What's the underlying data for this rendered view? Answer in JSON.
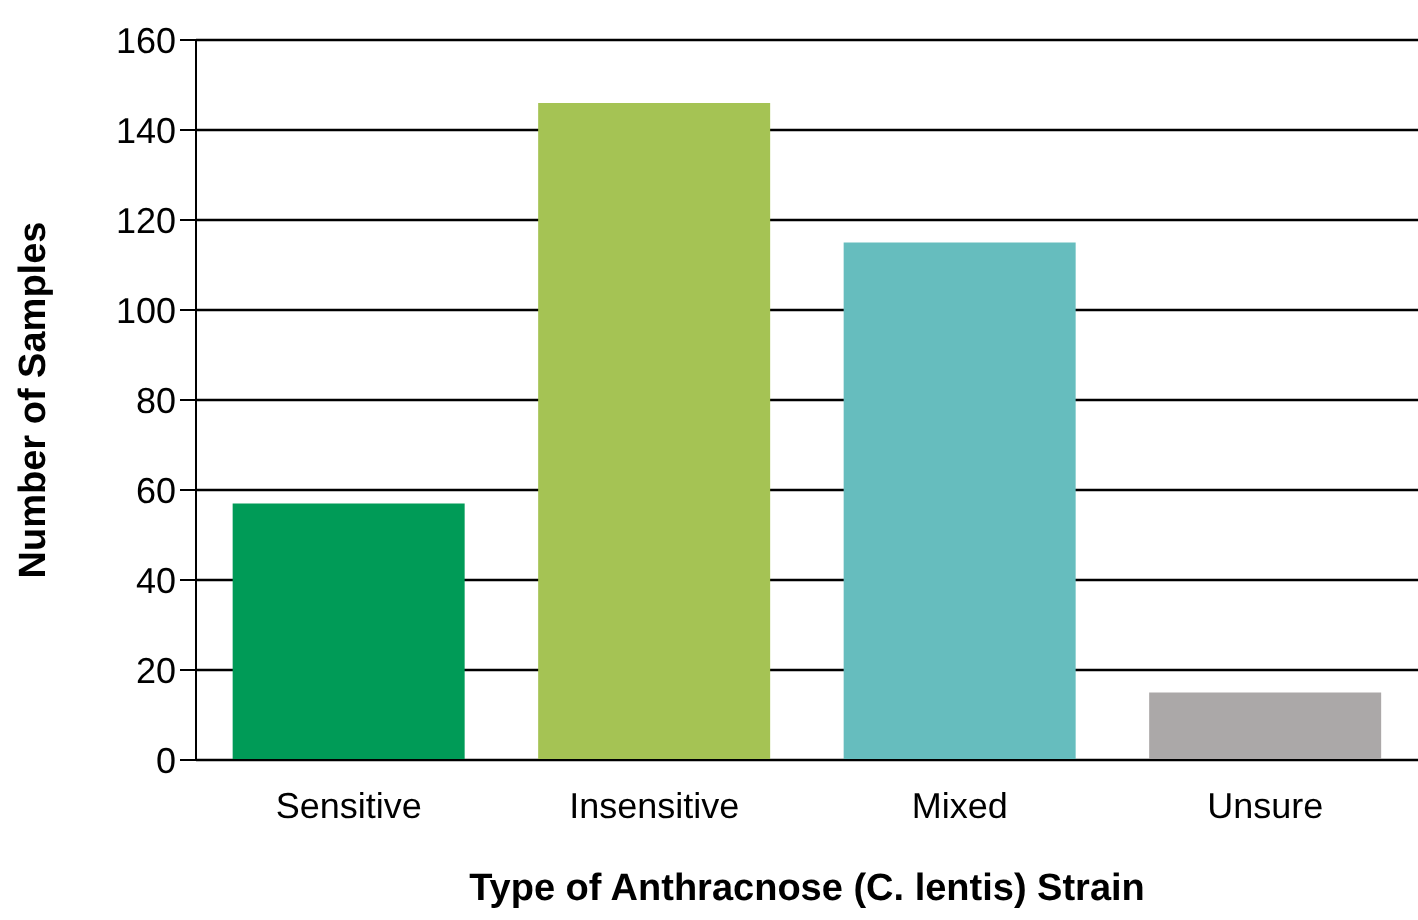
{
  "chart_data": {
    "type": "bar",
    "xlabel": "Type of Anthracnose (C. lentis) Strain",
    "ylabel": "Number of Samples",
    "categories": [
      "Sensitive",
      "Insensitive",
      "Mixed",
      "Unsure"
    ],
    "values": [
      57,
      146,
      115,
      15
    ],
    "colors": [
      "#009b57",
      "#a5c354",
      "#66bdbe",
      "#aba8a8"
    ],
    "ylim": [
      0,
      160
    ],
    "yticks": [
      0,
      20,
      40,
      60,
      80,
      100,
      120,
      140,
      160
    ],
    "grid": "y"
  }
}
